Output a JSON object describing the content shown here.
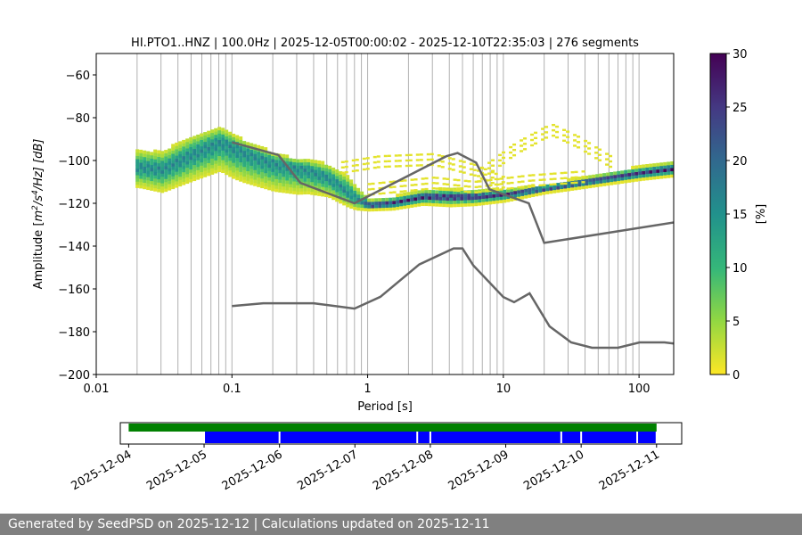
{
  "title": "HI.PTO1..HNZ | 100.0Hz | 2025-12-05T00:00:02 - 2025-12-10T22:35:03 | 276 segments",
  "footer": "Generated by SeedPSD on 2025-12-12 | Calculations updated on 2025-12-11",
  "colors": {
    "noise_model": "#666666",
    "coverage_data": "#008000",
    "coverage_segments": "#0000ff",
    "grid": "#b0b0b0"
  },
  "chart_data": [
    {
      "type": "heatmap",
      "name": "ppsd",
      "xscale": "log",
      "xlabel": "Period [s]",
      "ylabel": "Amplitude [m²/s⁴/Hz] [dB]",
      "ylabel_parts": {
        "pre": "Amplitude [",
        "m": "m",
        "sup1": "2",
        "mid": "/s",
        "sup2": "4",
        "post": "/Hz] [dB]"
      },
      "xlim": [
        0.01,
        180
      ],
      "ylim": [
        -200,
        -50
      ],
      "xticks": [
        0.01,
        0.1,
        1,
        10,
        100
      ],
      "xtick_labels": [
        "0.01",
        "0.1",
        "1",
        "10",
        "100"
      ],
      "yticks": [
        -60,
        -80,
        -100,
        -120,
        -140,
        -160,
        -180,
        -200
      ],
      "ytick_labels": [
        "−60",
        "−80",
        "−100",
        "−120",
        "−140",
        "−160",
        "−180",
        "−200"
      ],
      "grid_periods": [
        0.02,
        0.03,
        0.04,
        0.05,
        0.06,
        0.07,
        0.08,
        0.09,
        0.1,
        0.2,
        0.3,
        0.4,
        0.5,
        0.6,
        0.7,
        0.8,
        0.9,
        1,
        2,
        3,
        4,
        5,
        6,
        7,
        8,
        9,
        10,
        20,
        30,
        40,
        50,
        60,
        70,
        80,
        90,
        100
      ],
      "colorbar": {
        "label": "[%]",
        "range": [
          0,
          30
        ],
        "ticks": [
          0,
          5,
          10,
          15,
          20,
          25,
          30
        ],
        "colormap": "viridis_r"
      },
      "mode_curve": [
        {
          "period": 0.02,
          "db": -103
        },
        {
          "period": 0.03,
          "db": -104
        },
        {
          "period": 0.05,
          "db": -97
        },
        {
          "period": 0.08,
          "db": -91
        },
        {
          "period": 0.12,
          "db": -96
        },
        {
          "period": 0.2,
          "db": -101
        },
        {
          "period": 0.35,
          "db": -104
        },
        {
          "period": 0.5,
          "db": -108
        },
        {
          "period": 0.8,
          "db": -118
        },
        {
          "period": 1.0,
          "db": -121
        },
        {
          "period": 1.5,
          "db": -120
        },
        {
          "period": 2.5,
          "db": -117
        },
        {
          "period": 4.0,
          "db": -117
        },
        {
          "period": 6.0,
          "db": -117
        },
        {
          "period": 10,
          "db": -116
        },
        {
          "period": 20,
          "db": -113
        },
        {
          "period": 50,
          "db": -109
        },
        {
          "period": 100,
          "db": -106
        },
        {
          "period": 180,
          "db": -104
        }
      ],
      "band_spread_db": [
        {
          "period": 0.02,
          "above": 8,
          "below": 9
        },
        {
          "period": 0.05,
          "above": 9,
          "below": 12
        },
        {
          "period": 0.1,
          "above": 6,
          "below": 14
        },
        {
          "period": 0.3,
          "above": 4,
          "below": 12
        },
        {
          "period": 0.7,
          "above": 8,
          "below": 6
        },
        {
          "period": 1.0,
          "above": 3,
          "below": 2
        },
        {
          "period": 4.0,
          "above": 4,
          "below": 4
        },
        {
          "period": 20,
          "above": 2,
          "below": 2
        },
        {
          "period": 180,
          "above": 4,
          "below": 3
        }
      ],
      "secondary_branches": [
        {
          "name": "upper-mid",
          "points": [
            {
              "period": 0.6,
              "db": -103
            },
            {
              "period": 1.2,
              "db": -100
            },
            {
              "period": 3.0,
              "db": -99
            },
            {
              "period": 6.0,
              "db": -104
            },
            {
              "period": 10,
              "db": -110
            }
          ]
        },
        {
          "name": "hump",
          "points": [
            {
              "period": 6.0,
              "db": -108
            },
            {
              "period": 12,
              "db": -94
            },
            {
              "period": 22,
              "db": -85
            },
            {
              "period": 35,
              "db": -91
            },
            {
              "period": 60,
              "db": -100
            }
          ]
        },
        {
          "name": "lower-mid",
          "points": [
            {
              "period": 1.0,
              "db": -113
            },
            {
              "period": 3.0,
              "db": -110
            },
            {
              "period": 6.0,
              "db": -112
            },
            {
              "period": 15,
              "db": -109
            },
            {
              "period": 40,
              "db": -107
            }
          ]
        }
      ],
      "noise_models": [
        {
          "name": "nhnm",
          "points": [
            {
              "period": 0.1,
              "db": -91.5
            },
            {
              "period": 0.22,
              "db": -97.4
            },
            {
              "period": 0.32,
              "db": -110.5
            },
            {
              "period": 0.8,
              "db": -120
            },
            {
              "period": 3.8,
              "db": -98
            },
            {
              "period": 4.6,
              "db": -96.5
            },
            {
              "period": 6.3,
              "db": -101
            },
            {
              "period": 7.9,
              "db": -113.5
            },
            {
              "period": 15.4,
              "db": -120
            },
            {
              "period": 20,
              "db": -138.5
            },
            {
              "period": 354.8,
              "db": -126
            }
          ]
        },
        {
          "name": "nlnm",
          "points": [
            {
              "period": 0.1,
              "db": -168
            },
            {
              "period": 0.17,
              "db": -166.7
            },
            {
              "period": 0.4,
              "db": -166.7
            },
            {
              "period": 0.8,
              "db": -169.2
            },
            {
              "period": 1.24,
              "db": -163.7
            },
            {
              "period": 2.4,
              "db": -148.6
            },
            {
              "period": 4.3,
              "db": -141.1
            },
            {
              "period": 5.0,
              "db": -141.1
            },
            {
              "period": 6.0,
              "db": -149
            },
            {
              "period": 10,
              "db": -163.8
            },
            {
              "period": 12,
              "db": -166.2
            },
            {
              "period": 15.6,
              "db": -162.1
            },
            {
              "period": 21.9,
              "db": -177.5
            },
            {
              "period": 31.6,
              "db": -185
            },
            {
              "period": 45,
              "db": -187.5
            },
            {
              "period": 70,
              "db": -187.5
            },
            {
              "period": 101,
              "db": -185
            },
            {
              "period": 154,
              "db": -185
            },
            {
              "period": 180,
              "db": -185.5
            }
          ]
        }
      ]
    },
    {
      "type": "timeline",
      "name": "coverage",
      "xlim": [
        "2025-12-03T21:20",
        "2025-12-11T08:00"
      ],
      "xticks": [
        "2025-12-04",
        "2025-12-05",
        "2025-12-06",
        "2025-12-07",
        "2025-12-08",
        "2025-12-09",
        "2025-12-10",
        "2025-12-11"
      ],
      "data_span": {
        "start": "2025-12-04T00:00",
        "end": "2025-12-11T00:00"
      },
      "segments": [
        {
          "start": "2025-12-05T00:00",
          "end": "2025-12-06T00:00"
        },
        {
          "start": "2025-12-06T00:00",
          "end": "2025-12-07T19:50"
        },
        {
          "start": "2025-12-07T19:50",
          "end": "2025-12-08T00:00"
        },
        {
          "start": "2025-12-08T00:00",
          "end": "2025-12-09T17:40"
        },
        {
          "start": "2025-12-09T17:40",
          "end": "2025-12-10T00:00"
        },
        {
          "start": "2025-12-10T00:00",
          "end": "2025-12-10T17:50"
        },
        {
          "start": "2025-12-10T17:50",
          "end": "2025-12-11T00:00"
        }
      ]
    }
  ]
}
